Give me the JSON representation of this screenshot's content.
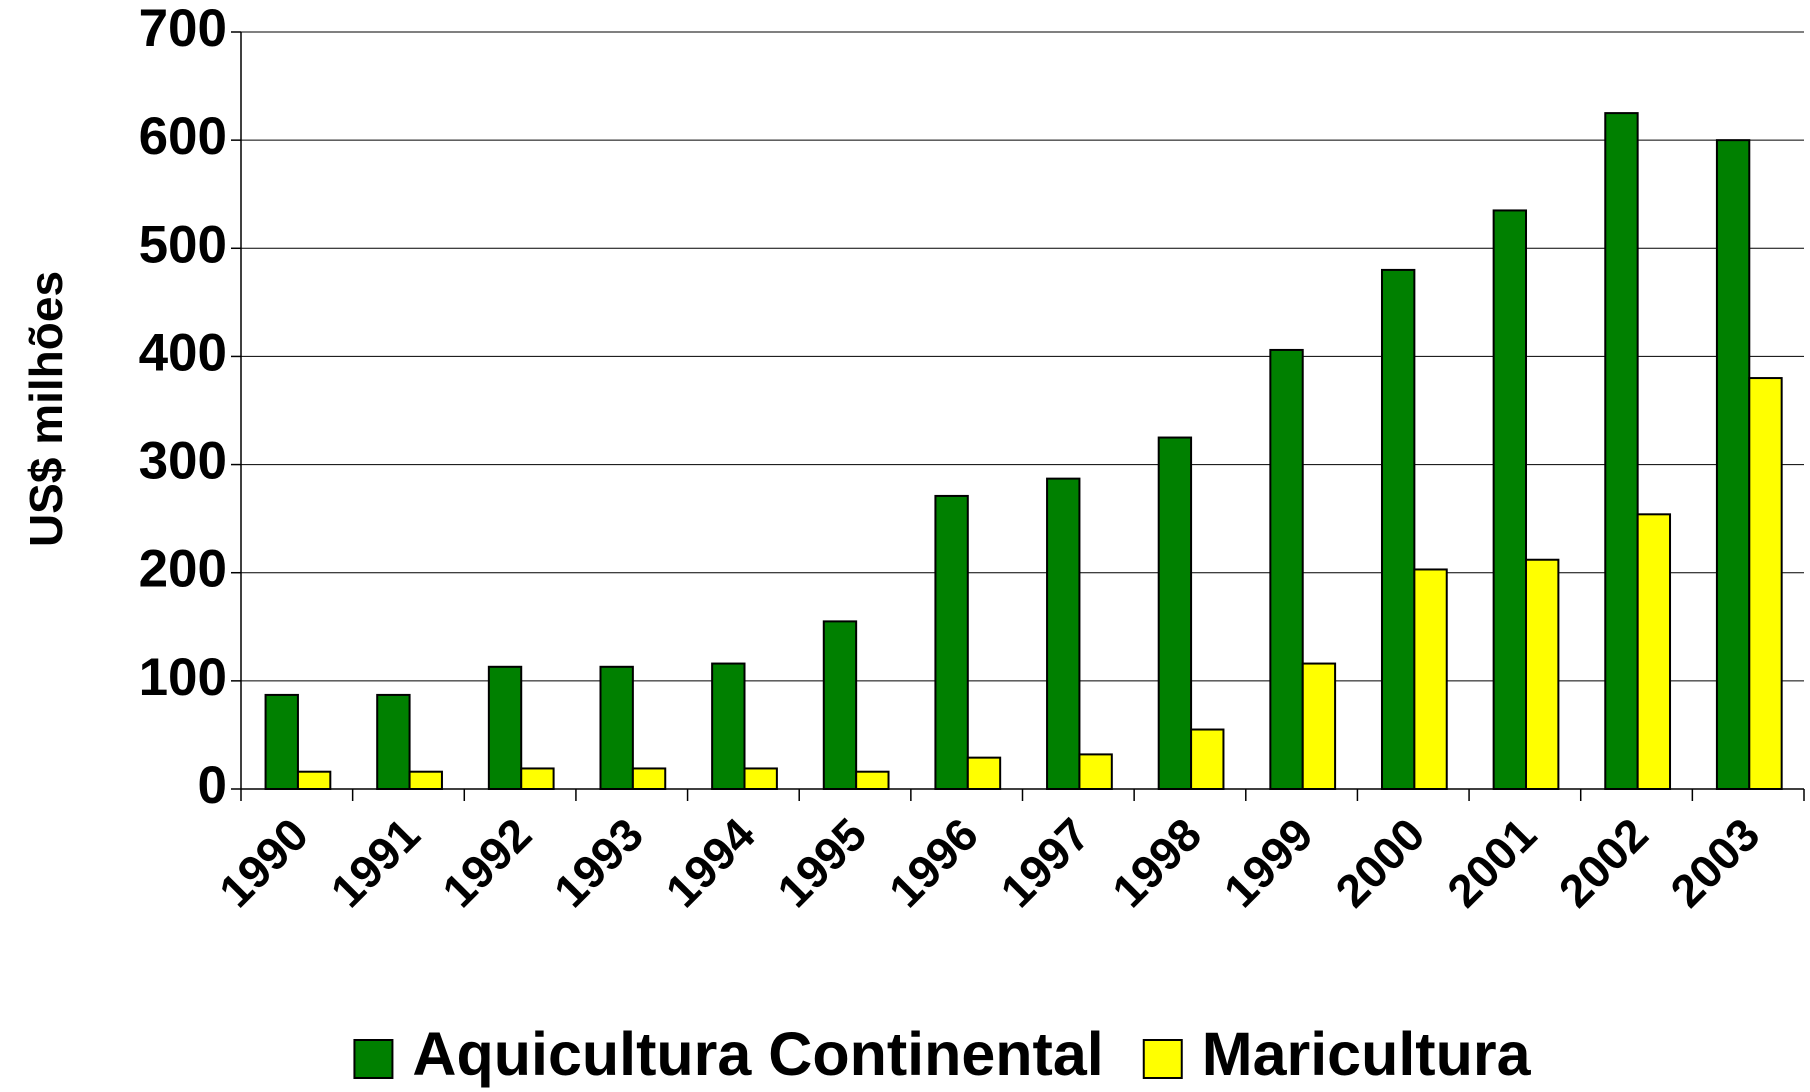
{
  "chart_data": {
    "type": "bar",
    "y_label": "US$ milhões",
    "categories": [
      "1990",
      "1991",
      "1992",
      "1993",
      "1994",
      "1995",
      "1996",
      "1997",
      "1998",
      "1999",
      "2000",
      "2001",
      "2002",
      "2003"
    ],
    "series": [
      {
        "name": "Aquicultura Continental",
        "color": "#008000",
        "values": [
          87,
          87,
          113,
          113,
          116,
          155,
          271,
          287,
          325,
          406,
          480,
          535,
          625,
          600
        ]
      },
      {
        "name": "Maricultura",
        "color": "#ffff00",
        "values": [
          16,
          16,
          19,
          19,
          19,
          16,
          29,
          32,
          55,
          116,
          203,
          212,
          254,
          380
        ]
      }
    ],
    "ylim": [
      0,
      700
    ],
    "yticks": [
      0,
      100,
      200,
      300,
      400,
      500,
      600,
      700
    ],
    "grid": true,
    "legend": "bottom"
  }
}
